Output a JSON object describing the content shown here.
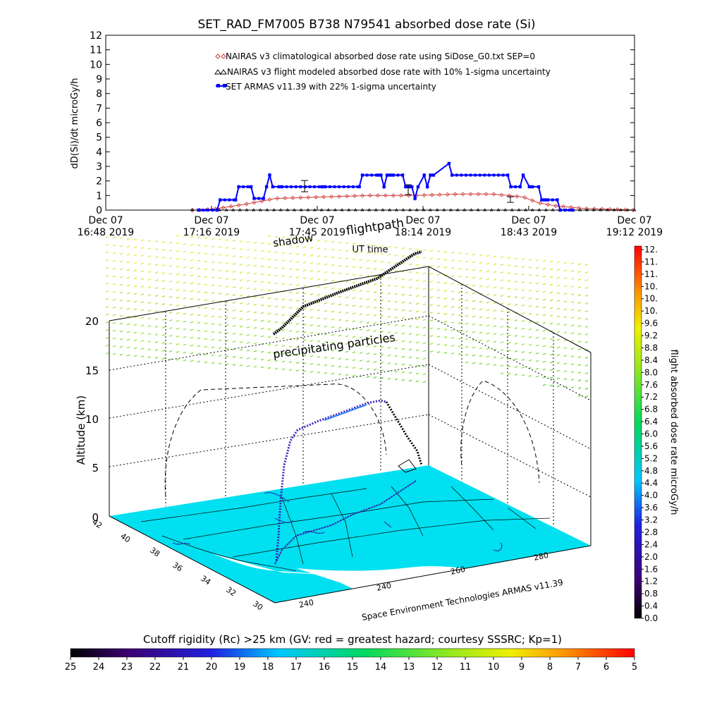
{
  "chart_data": [
    {
      "type": "line",
      "title": "SET_RAD_FM7005  B738 N79541 absorbed dose rate (Si)",
      "ylabel": "dD(Si)/dt microGy/h",
      "xlabel": "UT time",
      "ylim": [
        0,
        12
      ],
      "yticks": [
        "0",
        "1",
        "2",
        "3",
        "4",
        "5",
        "6",
        "7",
        "8",
        "9",
        "10",
        "11",
        "12"
      ],
      "xticks": [
        {
          "l1": "Dec 07",
          "l2": "16:48 2019"
        },
        {
          "l1": "Dec 07",
          "l2": "17:16 2019"
        },
        {
          "l1": "Dec 07",
          "l2": "17:45 2019"
        },
        {
          "l1": "Dec 07",
          "l2": "18:14 2019"
        },
        {
          "l1": "Dec 07",
          "l2": "18:43 2019"
        },
        {
          "l1": "Dec 07",
          "l2": "19:12 2019"
        }
      ],
      "legend_position": "top-center",
      "series": [
        {
          "name": "NAIRAS v3 climatological absorbed dose rate using SiDose_G0.txt SEP=0",
          "color": "#d23c3c",
          "marker": "diamond",
          "x_minutes": [
            0,
            30,
            36,
            45,
            55,
            70,
            85,
            100,
            115,
            125,
            130,
            135,
            140,
            145,
            155,
            165,
            171
          ],
          "values": [
            0,
            0,
            0.1,
            0.4,
            0.8,
            0.9,
            1.0,
            1.0,
            1.1,
            1.1,
            1.0,
            0.9,
            0.5,
            0.3,
            0.1,
            0.05,
            0
          ]
        },
        {
          "name": "NAIRAS v3 flight modeled absorbed dose rate with 10% 1-sigma uncertainty",
          "color": "#000000",
          "marker": "triangle",
          "x_minutes": [
            0,
            171
          ],
          "values": [
            0,
            0
          ]
        },
        {
          "name": "SET ARMAS v11.39 with 22% 1-sigma uncertainty",
          "color": "#0000ff",
          "marker": "square",
          "x_minutes": [
            30,
            36,
            37,
            42,
            43,
            47,
            48,
            51,
            52,
            53,
            54,
            56,
            57,
            70,
            71,
            82,
            83,
            88,
            89,
            90,
            91,
            92,
            93,
            96,
            97,
            98,
            99,
            100,
            101,
            103,
            104,
            105,
            106,
            111,
            112,
            130,
            131,
            134,
            135,
            137,
            138,
            140,
            141,
            142,
            143,
            146,
            147,
            151
          ],
          "values": [
            0,
            0,
            0.7,
            0.7,
            1.6,
            1.6,
            0.8,
            0.8,
            1.6,
            2.4,
            1.6,
            1.6,
            1.6,
            1.6,
            1.6,
            1.6,
            2.4,
            2.4,
            2.4,
            1.6,
            2.4,
            2.4,
            2.4,
            2.4,
            1.6,
            1.6,
            1.6,
            0.8,
            1.6,
            2.4,
            1.6,
            2.4,
            2.4,
            3.2,
            2.4,
            2.4,
            1.6,
            1.6,
            2.4,
            1.6,
            1.6,
            1.6,
            0.7,
            0.7,
            0.7,
            0.7,
            0,
            0
          ]
        }
      ]
    },
    {
      "type": "scatter",
      "title": "",
      "zlabel": "Altitude (km)",
      "zticks": [
        "0",
        "5",
        "10",
        "15",
        "20"
      ],
      "lat_ticks": [
        "42",
        "40",
        "38",
        "36",
        "34",
        "32",
        "30"
      ],
      "lon_ticks": [
        "240",
        "240",
        "260",
        "280"
      ],
      "labels": {
        "shadow": "shadow",
        "flightpath": "flightpath",
        "precipitating": "precipitating particles",
        "credit": "Space Environment Technologies ARMAS v11.39"
      }
    },
    {
      "type": "heatmap",
      "title": "flight absorbed dose rate microGy/h",
      "orientation": "vertical",
      "ticks": [
        "12.",
        "11.",
        "11.",
        "10.",
        "10.",
        "10.",
        "9.6",
        "9.2",
        "8.8",
        "8.4",
        "8.0",
        "7.6",
        "7.2",
        "6.8",
        "6.4",
        "6.0",
        "5.6",
        "5.2",
        "4.8",
        "4.4",
        "4.0",
        "3.6",
        "3.2",
        "2.8",
        "2.4",
        "2.0",
        "1.6",
        "1.2",
        "0.8",
        "0.4",
        "0.0"
      ]
    },
    {
      "type": "heatmap",
      "title": "Cutoff rigidity (Rc) >25 km (GV: red = greatest hazard; courtesy SSSRC; Kp=1)",
      "orientation": "horizontal",
      "ticks": [
        "25",
        "24",
        "23",
        "22",
        "21",
        "20",
        "19",
        "18",
        "17",
        "16",
        "15",
        "14",
        "13",
        "12",
        "11",
        "10",
        "9",
        "8",
        "7",
        "6",
        "5"
      ]
    }
  ]
}
